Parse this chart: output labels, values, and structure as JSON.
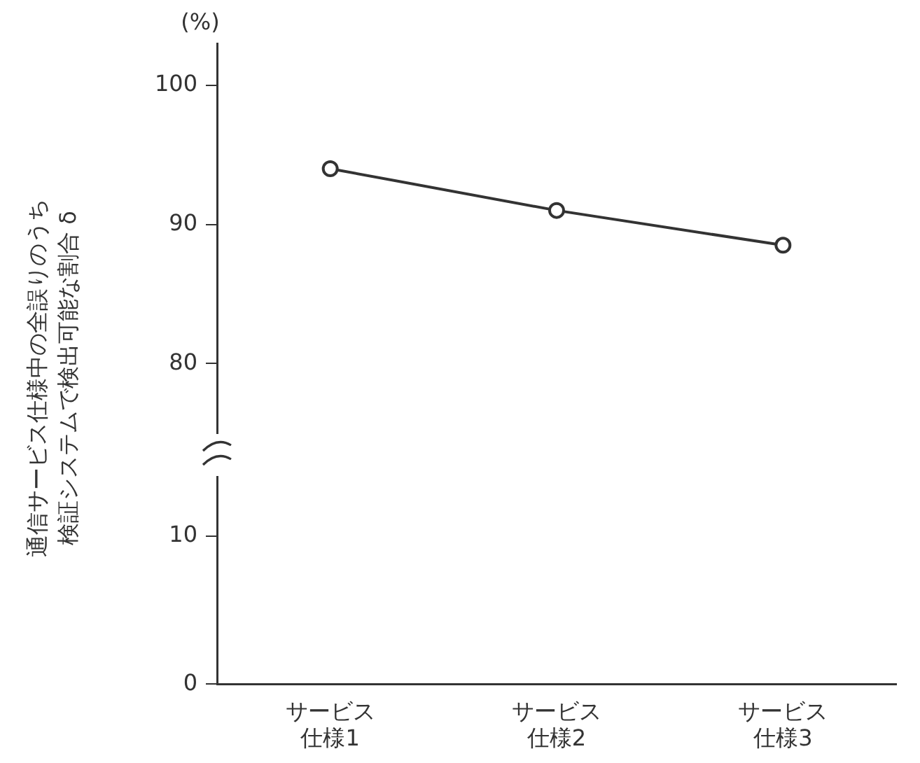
{
  "chart_data": [
    {
      "type": "line",
      "ylabel": "通信サービス仕様中の全誤りのうち検証システムで検出可能な割合 δ",
      "annotations": [
        "(%)"
      ],
      "categories": [
        "サービス仕様1",
        "サービス仕様2",
        "サービス仕様3"
      ],
      "series": [
        {
          "color": "#333333",
          "values": [
            94,
            91,
            88.5
          ]
        }
      ],
      "ylim": [
        75,
        103
      ],
      "yticks": [
        80,
        90,
        100
      ],
      "tick_labels": "y",
      "grid": false,
      "legend": false,
      "marker": "circle",
      "line_style": "solid"
    },
    {
      "type": "line",
      "categories": [
        "サービス仕様1",
        "サービス仕様2",
        "サービス仕様3"
      ],
      "ylim": [
        0,
        14
      ],
      "yticks": [
        0,
        10
      ],
      "grid": false,
      "legend": false
    }
  ]
}
